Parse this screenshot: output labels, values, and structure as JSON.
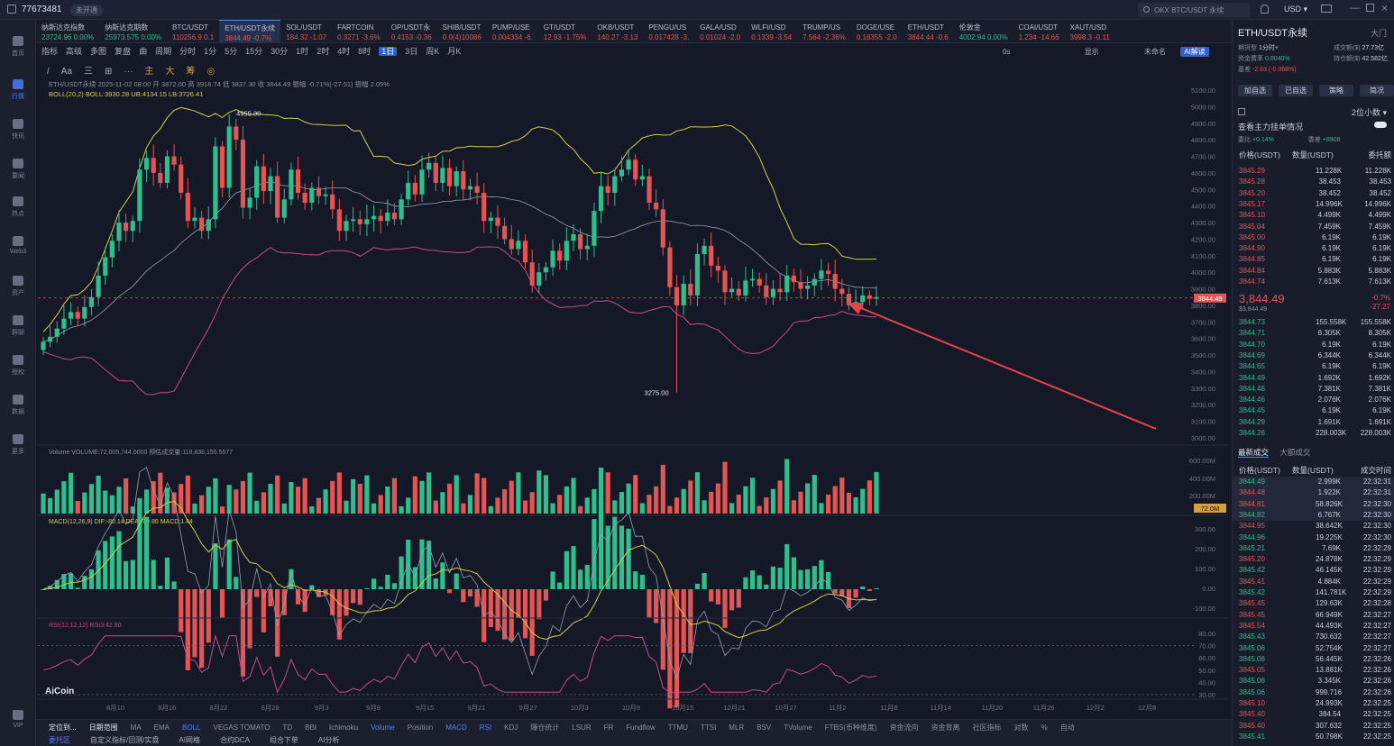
{
  "header": {
    "user_id": "77673481",
    "badge": "未开通",
    "search_placeholder": "OKX BTC/USDT 永续",
    "currency": "USD"
  },
  "sidebar": [
    {
      "label": "首页"
    },
    {
      "label": "行情",
      "active": true
    },
    {
      "label": "快讯"
    },
    {
      "label": "要闻"
    },
    {
      "label": "热点"
    },
    {
      "label": "Web3"
    },
    {
      "label": "资产"
    },
    {
      "label": "群聊"
    },
    {
      "label": "授权"
    },
    {
      "label": "数据"
    },
    {
      "label": "更多"
    },
    {
      "label": "VIP"
    }
  ],
  "tickers": [
    {
      "name": "纳斯达克指数",
      "price": "23724.96",
      "chg": "0.00%",
      "dir": "g"
    },
    {
      "name": "纳斯达克期数",
      "price": "25973.575",
      "chg": "0.00%",
      "dir": "g"
    },
    {
      "name": "BTC/USDT",
      "price": "110256.9",
      "chg": "0.1",
      "dir": "v"
    },
    {
      "name": "ETH/USDT永续",
      "price": "3844.49",
      "chg": "-0.7%",
      "dir": "v",
      "active": true
    },
    {
      "name": "SOL/USDT",
      "price": "184.32",
      "chg": "-1.07",
      "dir": "v"
    },
    {
      "name": "FARTCOIN",
      "price": "0.3271",
      "chg": "-3.6%",
      "dir": "v"
    },
    {
      "name": "OP/USDT永",
      "price": "0.4153",
      "chg": "-0.36",
      "dir": "v"
    },
    {
      "name": "SHIB/USDT",
      "price": "0.0(4)10086",
      "chg": "",
      "dir": "v"
    },
    {
      "name": "PUMP/USE",
      "price": "0.004334",
      "chg": "-6.",
      "dir": "v"
    },
    {
      "name": "GT/USDT",
      "price": "12.93",
      "chg": "-1.75%",
      "dir": "v"
    },
    {
      "name": "OKB/USDT",
      "price": "140.27",
      "chg": "-3.13",
      "dir": "v"
    },
    {
      "name": "PENGU/US",
      "price": "0.017428",
      "chg": "-3.",
      "dir": "v"
    },
    {
      "name": "GALA/USD",
      "price": "0.01024",
      "chg": "-2.0",
      "dir": "v"
    },
    {
      "name": "WLFI/USD",
      "price": "0.1339",
      "chg": "-3.54",
      "dir": "v"
    },
    {
      "name": "TRUMP/US",
      "price": "7.564",
      "chg": "-2.36%",
      "dir": "v"
    },
    {
      "name": "DOGE/USE",
      "price": "0.18355",
      "chg": "-2.0",
      "dir": "v"
    },
    {
      "name": "ETH/USDT",
      "price": "3844.44",
      "chg": "-0.6",
      "dir": "v"
    },
    {
      "name": "伦敦金",
      "price": "4002.94",
      "chg": "0.00%",
      "dir": "g"
    },
    {
      "name": "COAI/USDT",
      "price": "1.234",
      "chg": "-14.66",
      "dir": "v"
    },
    {
      "name": "XAUT/USD",
      "price": "3998.3",
      "chg": "-0.11",
      "dir": "v"
    }
  ],
  "toolbar": {
    "items": [
      "指标",
      "高级",
      "多图",
      "复盘",
      "曲",
      "周期",
      "分时",
      "1分",
      "5分",
      "15分",
      "30分",
      "1时",
      "2时",
      "4时",
      "8时",
      "1日",
      "3日",
      "周K",
      "月K"
    ],
    "selected": "1日",
    "right": [
      "0s",
      "显示",
      "未命名",
      "AI解读"
    ]
  },
  "drawing_tools": [
    "/",
    "Aa",
    "三",
    "⊞",
    "···",
    "主",
    "大",
    "筹",
    "◎"
  ],
  "chart": {
    "symbol_line": "ETH/USDT永续 2025-11-02 08:00 开 3872.00 高 3916.74 低 3837.30 收 3844.49 振幅 -0.71%(-27.51) 振幅 2.05%",
    "boll_line": "BOLL(20,2) BOLL:3930.28 UB:4134.15 LB:3726.41",
    "high_label": "4955.30",
    "low_label": "3275.00",
    "current_price": "3844.49",
    "y_ticks": [
      "5100.00",
      "5000.00",
      "4900.00",
      "4800.00",
      "4700.00",
      "4600.00",
      "4500.00",
      "4400.00",
      "4300.00",
      "4200.00",
      "4100.00",
      "4000.00",
      "3900.00",
      "3800.00",
      "3700.00",
      "3600.00",
      "3500.00",
      "3400.00",
      "3300.00",
      "3200.00",
      "3100.00",
      "3000.00"
    ],
    "x_ticks": [
      "8月10",
      "8月16",
      "8月22",
      "8月28",
      "9月3",
      "9月9",
      "9月15",
      "9月21",
      "9月27",
      "10月3",
      "10月9",
      "10月15",
      "10月21",
      "10月27",
      "11月2",
      "11月8",
      "11月14",
      "11月20",
      "11月26",
      "12月2",
      "12月8"
    ],
    "volume_line": "Volume VOLUME:72,005,744.0000 预估成交量:118,838,155.5577",
    "vol_ticks": [
      "600.00M",
      "400.00M",
      "200.00M"
    ],
    "vol_current": "72.0M",
    "macd_line": "MACD(12,26,9) DIF:-80.14 DEA:-80.86 MACD:1.44",
    "macd_ticks": [
      "300.00",
      "200.00",
      "100.00",
      "0.00",
      "-100.00"
    ],
    "rsi_line": "RSI(12,12,12) RSI3:42.80",
    "rsi_ticks": [
      "80.00",
      "70.00",
      "60.00",
      "50.00",
      "40.00",
      "30.00"
    ],
    "brand": "AiCoin"
  },
  "bottom": {
    "left": [
      "定位到...",
      "日期范围"
    ],
    "indicators": [
      "MA",
      "EMA",
      "BOLL",
      "VEGAS TOMATO",
      "TD",
      "BBI",
      "Ichimoku",
      "Volume",
      "Position",
      "MACD",
      "RSI",
      "KDJ",
      "爆仓统计",
      "LSUR",
      "FR",
      "Fundflow",
      "TTMU",
      "TTSI",
      "MLR",
      "BSV",
      "TVolume",
      "FTBS(币种维度)",
      "资金流向",
      "资金背离"
    ],
    "active": [
      "BOLL",
      "Volume",
      "MACD",
      "RSI"
    ],
    "right": [
      "社区指标",
      "对数",
      "%",
      "自动"
    ],
    "tabs": [
      "委托区",
      "自定义指标/回测/实盘",
      "AI网格",
      "合约DCA",
      "组合下单",
      "AI分析"
    ]
  },
  "panel": {
    "title": "ETH/USDT永续",
    "sub": "大门",
    "info": [
      [
        "期货型",
        "1分时+"
      ],
      [
        "成交额($)",
        "27.73亿"
      ],
      [
        "资金费率",
        "0.0040%"
      ],
      [
        "持仓额($)",
        "42.582亿"
      ],
      [
        "基差",
        "-2.63 (-0.068%)"
      ]
    ],
    "buttons": [
      "加自选",
      "已自选",
      "策略",
      "简况"
    ],
    "depth": "2位小数",
    "main_force": "查看主力挂单情况",
    "ratio": [
      "委比",
      "+0.14%",
      "委差",
      "+8908"
    ],
    "ob_headers": [
      "价格(USDT)",
      "数量(USDT)",
      "委托额"
    ],
    "asks": [
      [
        "3845.29",
        "11.228K",
        "11.228K"
      ],
      [
        "3845.28",
        "38.453",
        "38.453"
      ],
      [
        "3845.20",
        "38.452",
        "38.452"
      ],
      [
        "3845.17",
        "14.996K",
        "14.996K"
      ],
      [
        "3845.10",
        "4.499K",
        "4.499K"
      ],
      [
        "3845.04",
        "7.459K",
        "7.459K"
      ],
      [
        "3845.00",
        "6.19K",
        "6.19K"
      ],
      [
        "3844.90",
        "6.19K",
        "6.19K"
      ],
      [
        "3844.85",
        "6.19K",
        "6.19K"
      ],
      [
        "3844.84",
        "5.883K",
        "5.883K"
      ],
      [
        "3844.74",
        "7.613K",
        "7.613K"
      ]
    ],
    "mid_price": "3,844.49",
    "mid_chg": "-0.7%",
    "mid_sub": "$3,844.49",
    "mid_chg2": "-27.27",
    "bids": [
      [
        "3844.73",
        "155.558K",
        "155.558K"
      ],
      [
        "3844.71",
        "8.305K",
        "8.305K"
      ],
      [
        "3844.70",
        "6.19K",
        "6.19K"
      ],
      [
        "3844.69",
        "6.344K",
        "6.344K"
      ],
      [
        "3844.65",
        "6.19K",
        "6.19K"
      ],
      [
        "3844.49",
        "1.692K",
        "1.692K"
      ],
      [
        "3844.48",
        "7.381K",
        "7.381K"
      ],
      [
        "3844.46",
        "2.076K",
        "2.076K"
      ],
      [
        "3844.45",
        "6.19K",
        "6.19K"
      ],
      [
        "3844.29",
        "1.691K",
        "1.691K"
      ],
      [
        "3844.26",
        "228.003K",
        "228.003K"
      ]
    ],
    "trade_tabs": [
      "最新成交",
      "大额成交"
    ],
    "trade_headers": [
      "价格(USDT)",
      "数量(USDT)",
      "成交时间"
    ],
    "trades": [
      [
        "3844.49",
        "2.999K",
        "22:32:31",
        "g"
      ],
      [
        "3844.48",
        "1.922K",
        "22:32:31",
        "v"
      ],
      [
        "3844.81",
        "58.826K",
        "22:32:30",
        "v"
      ],
      [
        "3844.82",
        "6.767K",
        "22:32:30",
        "g"
      ],
      [
        "3844.95",
        "38.642K",
        "22:32:30",
        "v"
      ],
      [
        "3844.96",
        "19.225K",
        "22:32:30",
        "g"
      ],
      [
        "3845.21",
        "7.69K",
        "22:32:29",
        "g"
      ],
      [
        "3845.20",
        "24.878K",
        "22:32:29",
        "v"
      ],
      [
        "3845.42",
        "46.145K",
        "22:32:29",
        "g"
      ],
      [
        "3845.41",
        "4.884K",
        "22:32:29",
        "v"
      ],
      [
        "3845.42",
        "141.781K",
        "22:32:29",
        "g"
      ],
      [
        "3845.45",
        "129.63K",
        "22:32:28",
        "v"
      ],
      [
        "3845.45",
        "66.949K",
        "22:32:27",
        "v"
      ],
      [
        "3845.54",
        "44.493K",
        "22:32:27",
        "v"
      ],
      [
        "3845.43",
        "730.632",
        "22:32:27",
        "g"
      ],
      [
        "3845.06",
        "52.754K",
        "22:32:27",
        "g"
      ],
      [
        "3845.06",
        "56.445K",
        "22:32:26",
        "g"
      ],
      [
        "3845.05",
        "13.881K",
        "22:32:26",
        "v"
      ],
      [
        "3845.06",
        "3.345K",
        "22:32:26",
        "g"
      ],
      [
        "3845.06",
        "999.716",
        "22:32:26",
        "g"
      ],
      [
        "3845.10",
        "24.993K",
        "22:32:25",
        "v"
      ],
      [
        "3845.40",
        "384.54",
        "22:32:25",
        "v"
      ],
      [
        "3845.40",
        "307.632",
        "22:32:25",
        "v"
      ],
      [
        "3845.41",
        "50.798K",
        "22:32:25",
        "g"
      ]
    ]
  },
  "colors": {
    "up": "#2fbf8f",
    "down": "#e25656",
    "accent": "#4b82ff",
    "boll_mid": "#c9c9c9",
    "boll_up": "#d4d046",
    "boll_low": "#c84b8c"
  }
}
